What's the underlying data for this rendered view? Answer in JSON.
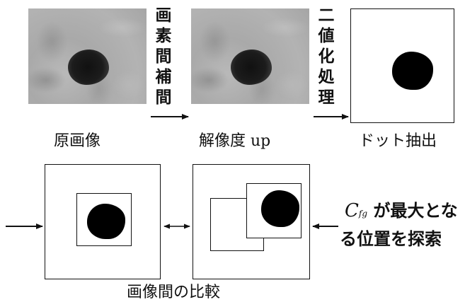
{
  "captions": {
    "original": "原画像",
    "upscaled": "解像度 up",
    "extracted": "ドット抽出",
    "comparison": "画像間の比較"
  },
  "steps": {
    "interpolation": [
      "画",
      "素",
      "間",
      "補",
      "間"
    ],
    "binarization": [
      "二",
      "値",
      "化",
      "処",
      "理"
    ]
  },
  "search_note": {
    "symbol": "C",
    "subscript": "fg",
    "line1_rest": " が最大とな",
    "line2": "る位置を探索"
  }
}
